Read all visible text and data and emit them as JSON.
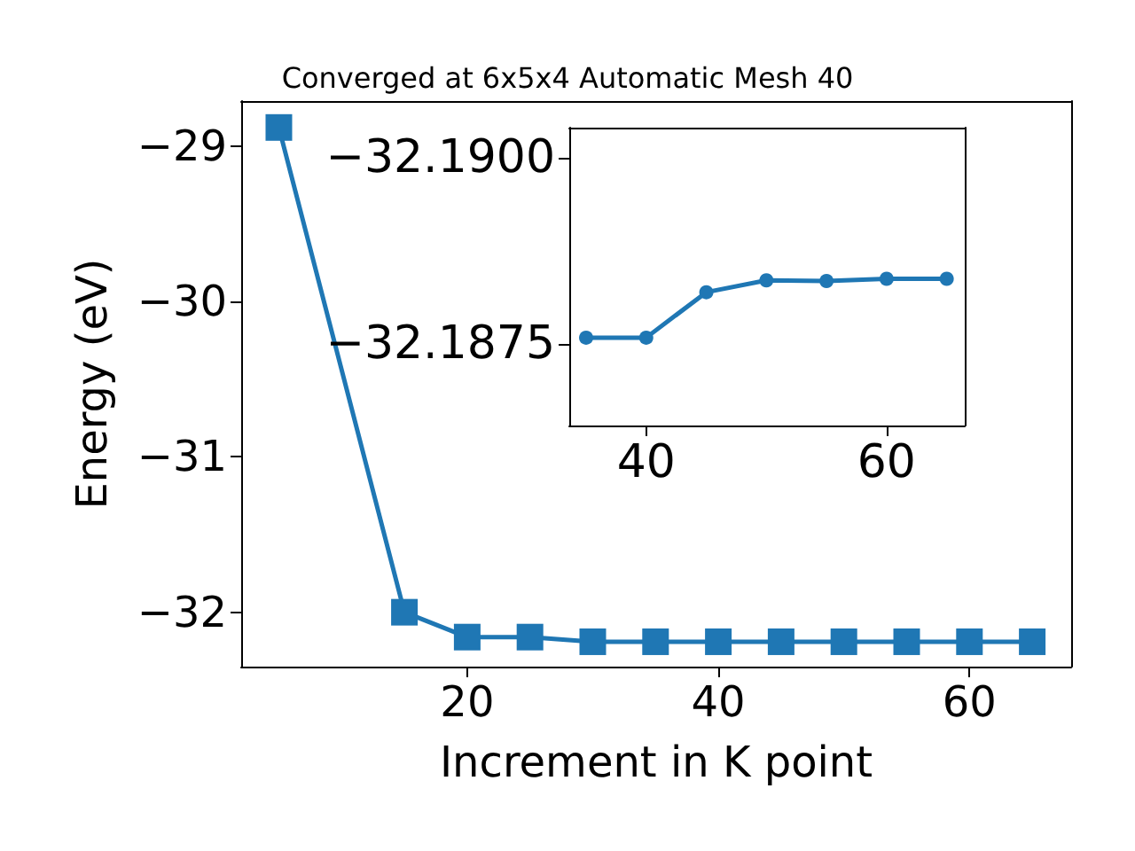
{
  "chart_data": [
    {
      "type": "line",
      "title": "Converged at 6x5x4 Automatic Mesh 40",
      "xlabel": "Increment in K point",
      "ylabel": "Energy (eV)",
      "x": [
        5,
        15,
        20,
        25,
        30,
        35,
        40,
        45,
        50,
        55,
        60,
        65
      ],
      "series": [
        {
          "color": "#1f77b4",
          "values": [
            -28.88,
            -32.0,
            -32.16,
            -32.16,
            -32.19,
            -32.19,
            -32.19,
            -32.19,
            -32.19,
            -32.19,
            -32.19,
            -32.19
          ]
        }
      ],
      "xlim": [
        2,
        68.1
      ],
      "ylim": [
        -32.35,
        -28.71
      ],
      "xticks": [
        20,
        40,
        60
      ],
      "yticks": [
        {
          "value": -32,
          "label": "−32"
        },
        {
          "value": -31,
          "label": "−31"
        },
        {
          "value": -30,
          "label": "−30"
        },
        {
          "value": -29,
          "label": "−29"
        }
      ],
      "marker": "square",
      "line_style": "solid"
    },
    {
      "type": "line",
      "x": [
        35,
        40,
        45,
        50,
        55,
        60,
        65
      ],
      "series": [
        {
          "color": "#1f77b4",
          "values": [
            -32.18758,
            -32.18758,
            -32.18819,
            -32.18835,
            -32.18834,
            -32.18837,
            -32.18837
          ]
        }
      ],
      "xlim": [
        33.6,
        66.5
      ],
      "ylim": [
        -32.1864,
        -32.1904
      ],
      "xticks": [
        40,
        60
      ],
      "yticks": [
        {
          "value": -32.19,
          "label": "−32.1900"
        },
        {
          "value": -32.1875,
          "label": "−32.1875"
        }
      ],
      "marker": "circle",
      "line_style": "solid"
    }
  ]
}
